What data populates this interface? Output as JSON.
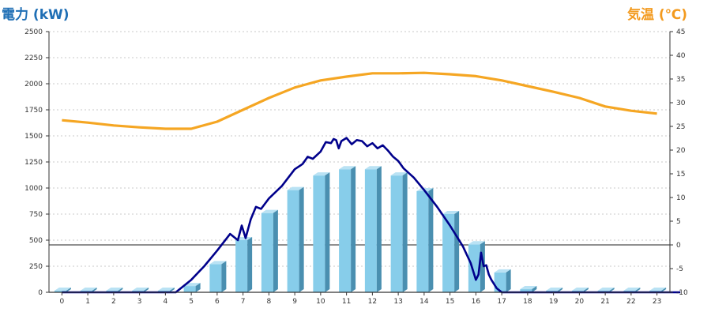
{
  "chart_data": {
    "type": "bar",
    "ylabel_left": "電力 (kW)",
    "ylabel_right": "気温 (℃)",
    "categories": [
      "0",
      "1",
      "2",
      "3",
      "4",
      "5",
      "6",
      "7",
      "8",
      "9",
      "10",
      "11",
      "12",
      "13",
      "14",
      "15",
      "16",
      "17",
      "18",
      "19",
      "20",
      "21",
      "22",
      "23"
    ],
    "y_left_range": [
      0,
      2500
    ],
    "y_left_ticks": [
      "0",
      "250",
      "500",
      "750",
      "1000",
      "1250",
      "1500",
      "1750",
      "2000",
      "2250",
      "2500"
    ],
    "y_right_range": [
      -10,
      45
    ],
    "y_right_ticks": [
      "-10",
      "-5",
      "0",
      "5",
      "10",
      "15",
      "20",
      "25",
      "30",
      "35",
      "40",
      "45"
    ],
    "grid": true,
    "colors": {
      "bars": "#87cdea",
      "power_line": "#00008b",
      "temperature": "#f5a623",
      "left_label": "#1f6fb5",
      "right_label": "#f39a1e"
    },
    "series": [
      {
        "kind": "bar-hourly-power-kW",
        "values": [
          0,
          0,
          0,
          0,
          0,
          60,
          270,
          500,
          760,
          980,
          1120,
          1180,
          1180,
          1120,
          970,
          750,
          460,
          190,
          30,
          0,
          0,
          0,
          0,
          0
        ]
      },
      {
        "kind": "line-power-kW",
        "x": [
          0,
          4.4,
          5,
          5.5,
          6,
          6.5,
          6.8,
          6.95,
          7.1,
          7.3,
          7.5,
          7.7,
          8,
          8.5,
          9,
          9.3,
          9.5,
          9.7,
          10,
          10.2,
          10.4,
          10.5,
          10.6,
          10.7,
          10.8,
          11,
          11.2,
          11.4,
          11.6,
          11.8,
          12,
          12.2,
          12.4,
          12.6,
          12.8,
          13,
          13.2,
          13.6,
          14,
          14.5,
          15,
          15.5,
          15.8,
          16,
          16.1,
          16.2,
          16.3,
          16.4,
          16.5,
          16.6,
          16.8,
          17,
          17.3,
          17.7,
          18,
          23.9
        ],
        "y": [
          0,
          0,
          120,
          250,
          400,
          560,
          500,
          640,
          520,
          700,
          820,
          800,
          900,
          1020,
          1180,
          1230,
          1300,
          1280,
          1350,
          1440,
          1430,
          1470,
          1460,
          1380,
          1450,
          1480,
          1420,
          1460,
          1450,
          1400,
          1430,
          1380,
          1410,
          1360,
          1300,
          1260,
          1190,
          1100,
          980,
          820,
          640,
          440,
          280,
          120,
          170,
          380,
          250,
          260,
          170,
          120,
          40,
          0,
          0,
          0,
          0,
          0
        ]
      },
      {
        "kind": "line-temperature-C",
        "x": [
          0,
          1,
          2,
          3,
          4,
          5,
          6,
          7,
          8,
          9,
          10,
          11,
          12,
          13,
          14,
          15,
          16,
          17,
          18,
          19,
          20,
          21,
          22,
          23
        ],
        "y": [
          26.3,
          25.8,
          25.2,
          24.8,
          24.5,
          24.5,
          26,
          28.5,
          31,
          33.2,
          34.7,
          35.5,
          36.2,
          36.2,
          36.3,
          36,
          35.6,
          34.7,
          33.5,
          32.3,
          31,
          29.2,
          28.3,
          27.7
        ]
      }
    ]
  }
}
